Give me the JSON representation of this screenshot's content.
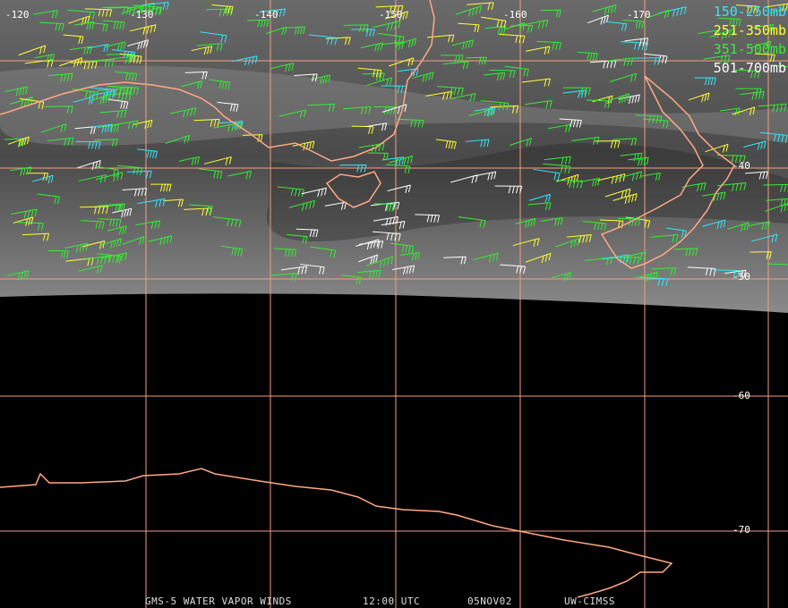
{
  "map": {
    "longitude_labels": [
      "-120",
      "-130",
      "-140",
      "-150",
      "-160",
      "-170"
    ],
    "latitude_labels": [
      "-40",
      "-50",
      "-60",
      "-70"
    ],
    "legend": [
      {
        "label": "150-250mb",
        "color": "#33e6ff"
      },
      {
        "label": "251-350mb",
        "color": "#ffff33"
      },
      {
        "label": "351-500mb",
        "color": "#33ee33"
      },
      {
        "label": "501-700mb",
        "color": "#ffffff"
      }
    ],
    "footer": [
      "GMS-5 WATER VAPOR WINDS",
      "12:00 UTC",
      "05NOV02",
      "UW-CIMSS"
    ]
  }
}
